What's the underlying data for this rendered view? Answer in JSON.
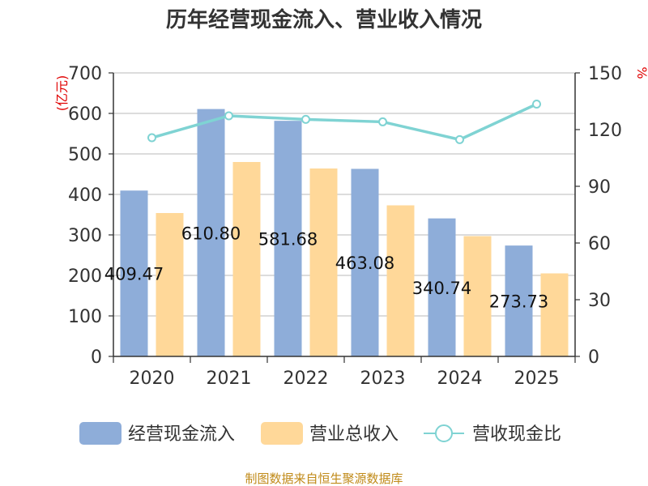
{
  "chart_data": {
    "type": "bar",
    "title": "历年经营现金流入、营业收入情况",
    "categories": [
      "2020",
      "2021",
      "2022",
      "2023",
      "2024",
      "2025"
    ],
    "series": [
      {
        "name": "经营现金流入",
        "type": "bar",
        "axis": "left",
        "color": "#8eadd9",
        "values": [
          409.47,
          610.8,
          581.68,
          463.08,
          340.74,
          273.73
        ],
        "labels": [
          "409.47",
          "610.80",
          "581.68",
          "463.08",
          "340.74",
          "273.73"
        ]
      },
      {
        "name": "营业总收入",
        "type": "bar",
        "axis": "left",
        "color": "#ffd899",
        "values": [
          354,
          480,
          464,
          373,
          297,
          205
        ]
      },
      {
        "name": "营收现金比",
        "type": "line",
        "axis": "right",
        "color": "#7fd3d3",
        "values": [
          115.7,
          127.3,
          125.4,
          124.1,
          114.7,
          133.5
        ]
      }
    ],
    "left_axis": {
      "unit": "(亿元)",
      "range": [
        0,
        700
      ],
      "ticks": [
        0,
        100,
        200,
        300,
        400,
        500,
        600,
        700
      ]
    },
    "right_axis": {
      "unit": "%",
      "range": [
        0,
        150
      ],
      "ticks": [
        0,
        30,
        60,
        90,
        120,
        150
      ]
    },
    "grid": true,
    "legend_position": "bottom",
    "source": "制图数据来自恒生聚源数据库"
  }
}
